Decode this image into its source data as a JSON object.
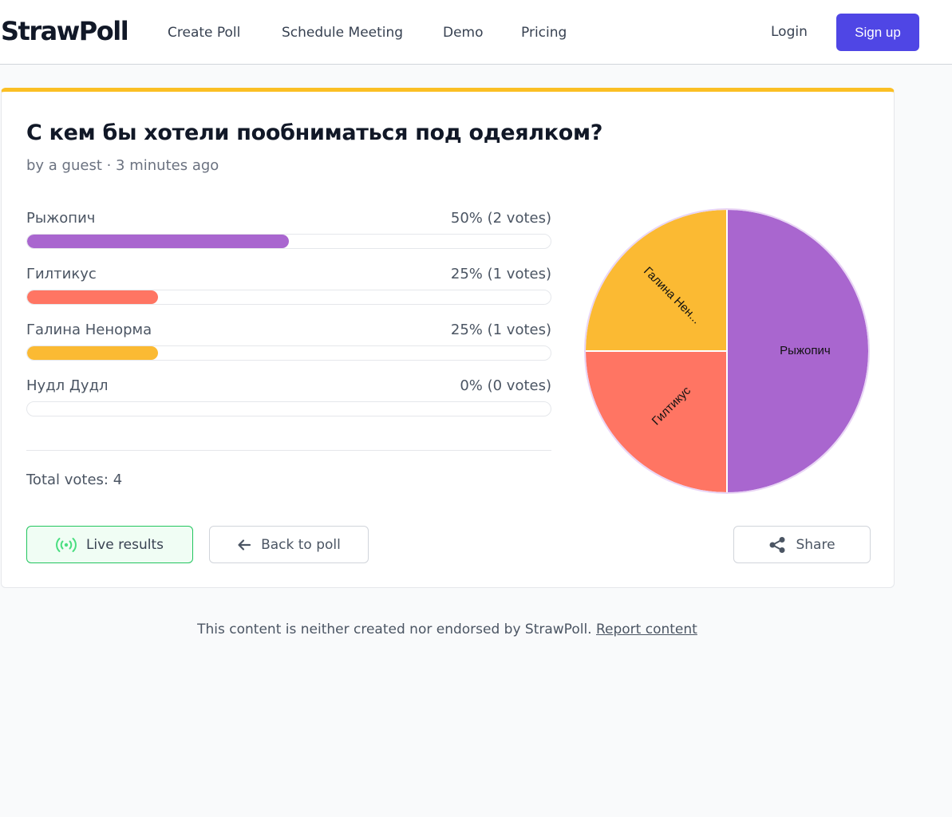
{
  "header": {
    "logo": "StrawPoll",
    "nav": [
      "Create Poll",
      "Schedule Meeting",
      "Demo",
      "Pricing"
    ],
    "login": "Login",
    "signup": "Sign up"
  },
  "poll": {
    "title": "С кем бы хотели пообниматься под одеялком?",
    "meta": "by a guest · 3 minutes ago",
    "options": [
      {
        "label": "Рыжопич",
        "stat": "50% (2 votes)",
        "percent": 50,
        "color": "#a966cf"
      },
      {
        "label": "Гилтикус",
        "stat": "25% (1 votes)",
        "percent": 25,
        "color": "#ff7563"
      },
      {
        "label": "Галина Ненорма",
        "stat": "25% (1 votes)",
        "percent": 25,
        "color": "#fbba33"
      },
      {
        "label": "Нудл Дудл",
        "stat": "0% (0 votes)",
        "percent": 0,
        "color": "#60a5fa"
      }
    ],
    "total": "Total votes: 4"
  },
  "chart_data": {
    "type": "pie",
    "labels": [
      "Рыжопич",
      "Гилтикус",
      "Галина Нен..."
    ],
    "values": [
      2,
      1,
      1
    ],
    "colors": [
      "#a966cf",
      "#ff7563",
      "#fbba33"
    ]
  },
  "buttons": {
    "live": "Live results",
    "back": "Back to poll",
    "share": "Share"
  },
  "footer": {
    "text": "This content is neither created nor endorsed by StrawPoll.",
    "link": "Report content"
  }
}
